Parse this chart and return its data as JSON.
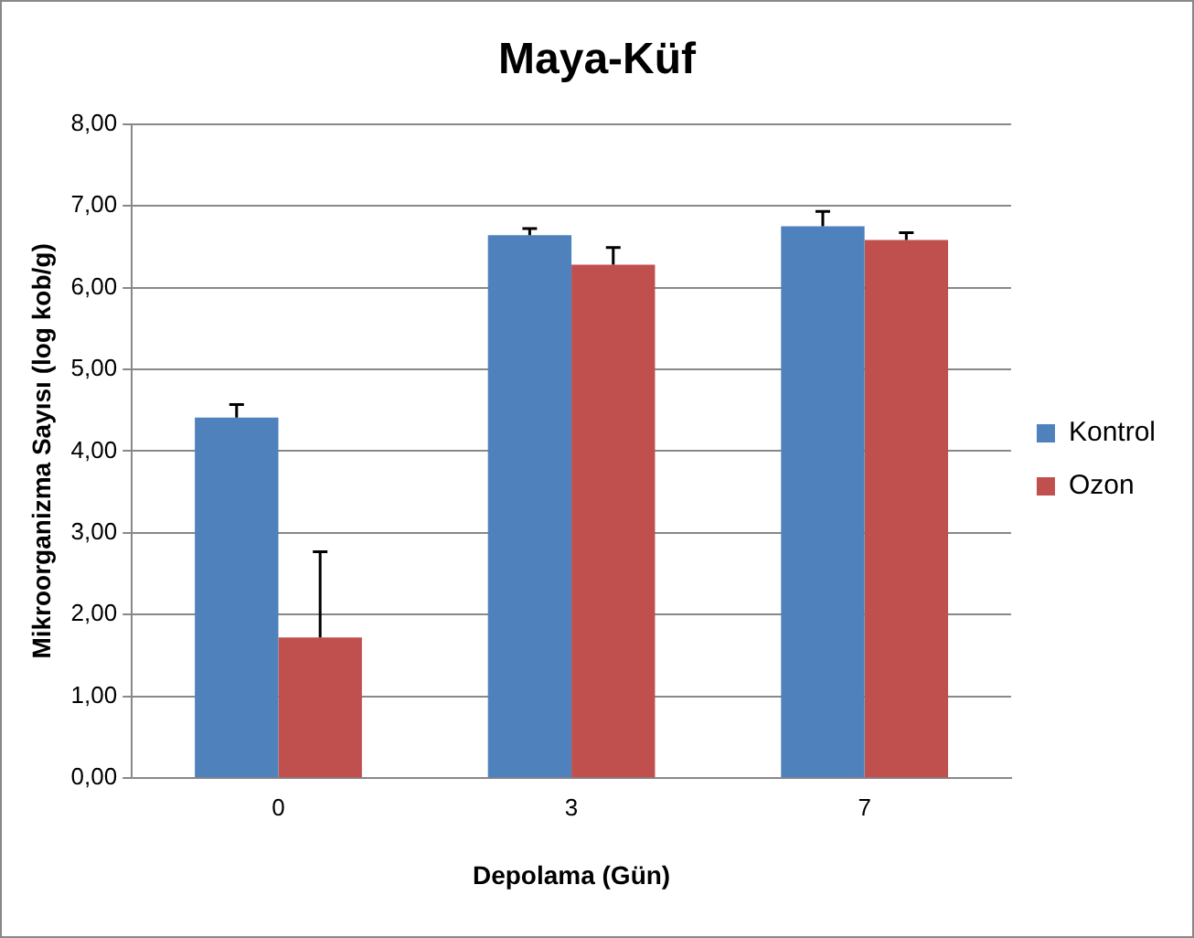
{
  "chart_data": {
    "type": "bar",
    "title": "Maya-Küf",
    "xlabel": "Depolama (Gün)",
    "ylabel": "Mikroorganizma Sayısı (log kob/g)",
    "categories": [
      "0",
      "3",
      "7"
    ],
    "series": [
      {
        "name": "Kontrol",
        "color": "#4f81bd",
        "values": [
          4.41,
          6.64,
          6.75
        ],
        "errors": [
          [
            4.41,
            4.57
          ],
          [
            6.64,
            6.72
          ],
          [
            6.75,
            6.93
          ]
        ]
      },
      {
        "name": "Ozon",
        "color": "#c0504d",
        "values": [
          1.72,
          6.28,
          6.58
        ],
        "errors": [
          [
            1.72,
            2.77
          ],
          [
            6.28,
            6.49
          ],
          [
            6.58,
            6.67
          ]
        ]
      }
    ],
    "ylim": [
      0,
      8
    ],
    "yticks": [
      {
        "value": 0,
        "label": "0,00"
      },
      {
        "value": 1,
        "label": "1,00"
      },
      {
        "value": 2,
        "label": "2,00"
      },
      {
        "value": 3,
        "label": "3,00"
      },
      {
        "value": 4,
        "label": "4,00"
      },
      {
        "value": 5,
        "label": "5,00"
      },
      {
        "value": 6,
        "label": "6,00"
      },
      {
        "value": 7,
        "label": "7,00"
      },
      {
        "value": 8,
        "label": "8,00"
      }
    ],
    "grid": "y",
    "legend": "right"
  }
}
